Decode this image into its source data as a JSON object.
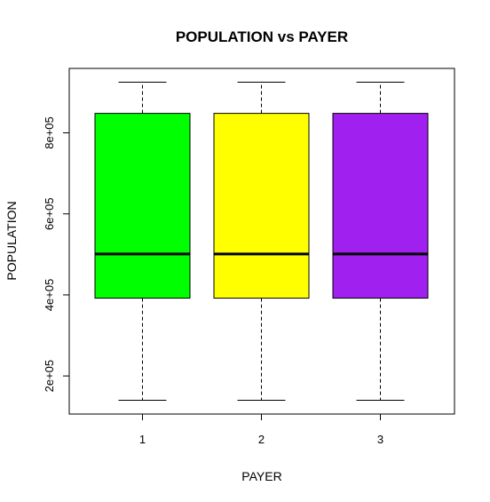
{
  "chart_data": {
    "type": "boxplot",
    "title": "POPULATION vs PAYER",
    "xlabel": "PAYER",
    "ylabel": "POPULATION",
    "categories": [
      "1",
      "2",
      "3"
    ],
    "colors": [
      "#00ff00",
      "#ffff00",
      "#a020f0"
    ],
    "boxes": [
      {
        "category": "1",
        "whisker_low": 140000,
        "q1": 392000,
        "median": 501000,
        "q3": 848000,
        "whisker_high": 925000
      },
      {
        "category": "2",
        "whisker_low": 140000,
        "q1": 392000,
        "median": 501000,
        "q3": 848000,
        "whisker_high": 925000
      },
      {
        "category": "3",
        "whisker_low": 140000,
        "q1": 392000,
        "median": 501000,
        "q3": 848000,
        "whisker_high": 925000
      }
    ],
    "yticks": [
      200000,
      400000,
      600000,
      800000
    ],
    "ytick_labels": [
      "2e+05",
      "4e+05",
      "6e+05",
      "8e+05"
    ],
    "ylim": [
      106000,
      959000
    ],
    "grid": false,
    "legend": "none"
  }
}
